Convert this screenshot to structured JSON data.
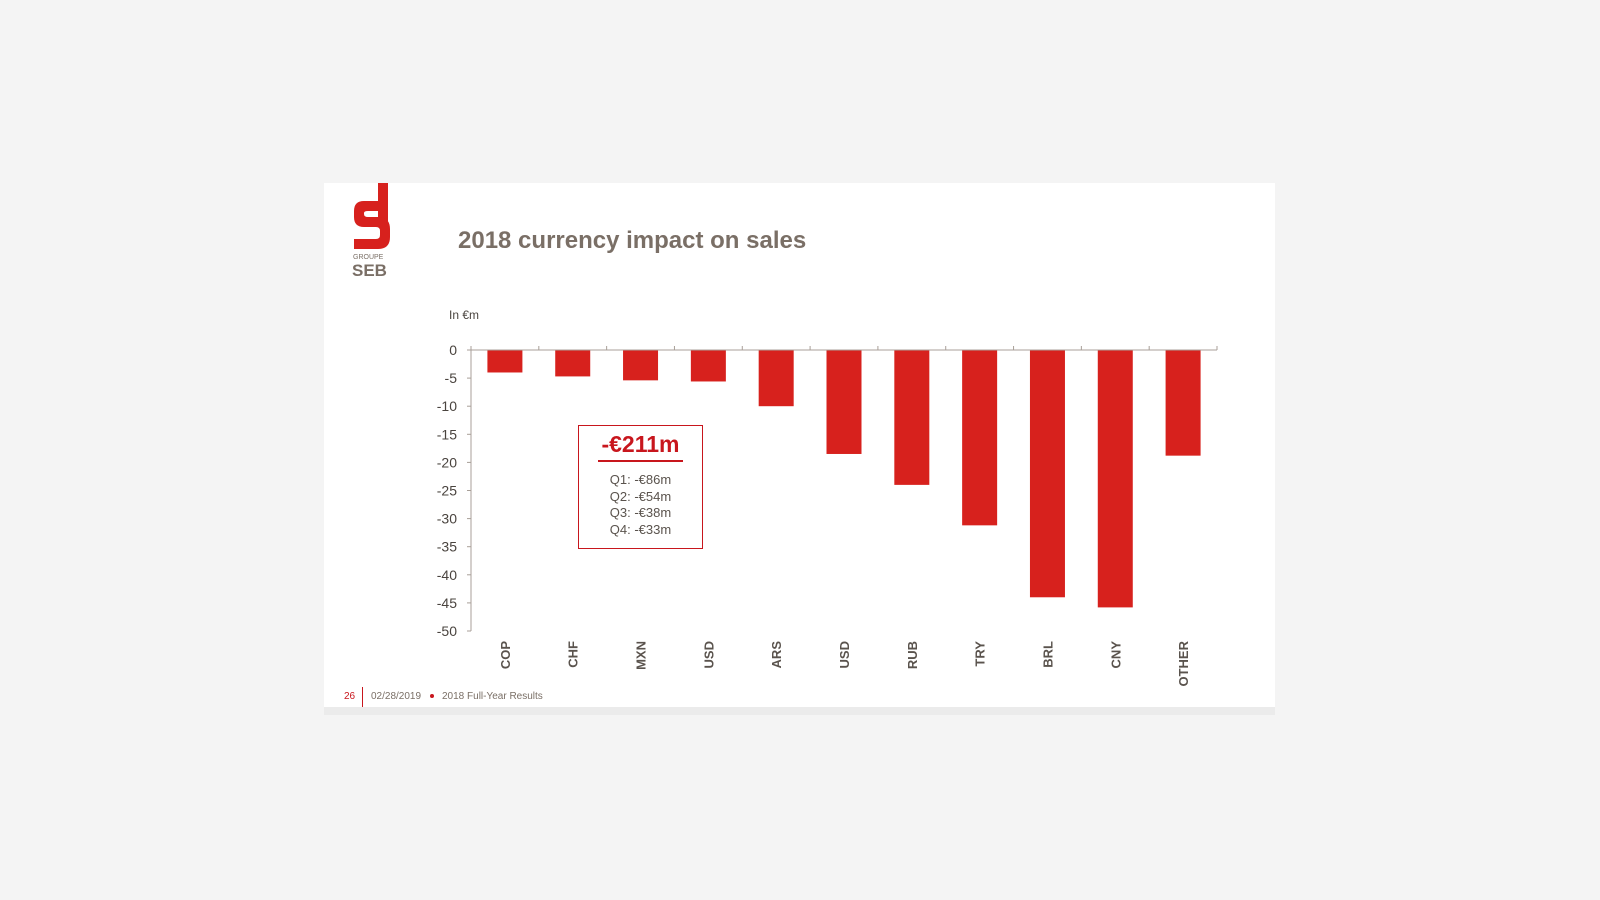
{
  "slide": {
    "title": "2018 currency impact on sales",
    "logo_text": {
      "line1": "GROUPE",
      "line2": "SEB"
    }
  },
  "chart_data": {
    "type": "bar",
    "unit_label": "In €m",
    "categories": [
      "COP",
      "CHF",
      "MXN",
      "USD",
      "ARS",
      "USD",
      "RUB",
      "TRY",
      "BRL",
      "CNY",
      "OTHER"
    ],
    "values": [
      -4,
      -4.7,
      -5.4,
      -5.6,
      -10,
      -18.5,
      -24,
      -31.2,
      -44,
      -45.8,
      -18.8
    ],
    "ylim": [
      -50,
      0
    ],
    "yticks": [
      0,
      -5,
      -10,
      -15,
      -20,
      -25,
      -30,
      -35,
      -40,
      -45,
      -50
    ],
    "bar_color": "#d7211d",
    "grid": false,
    "legend": "none"
  },
  "total_box": {
    "value": "-€211m",
    "quarters": [
      "Q1: -€86m",
      "Q2: -€54m",
      "Q3: -€38m",
      "Q4: -€33m"
    ]
  },
  "footer": {
    "page_number": "26",
    "date": "02/28/2019",
    "report": "2018 Full-Year Results"
  },
  "colors": {
    "accent": "#c8161d",
    "title": "#7a6f66",
    "background": "#f4f4f4"
  }
}
